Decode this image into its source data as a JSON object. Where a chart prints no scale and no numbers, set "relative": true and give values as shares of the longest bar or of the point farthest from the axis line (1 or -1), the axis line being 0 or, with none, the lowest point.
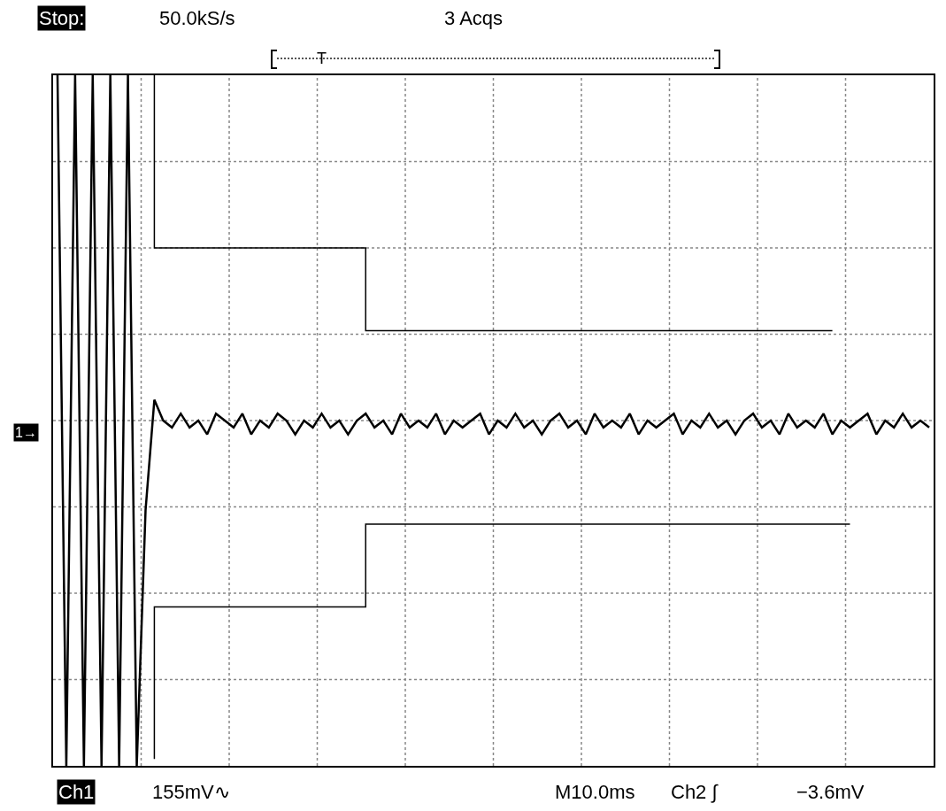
{
  "chart_data": {
    "type": "line",
    "relative": true,
    "grid": true,
    "annotations": [
      "Stop:",
      "50.0kS/s",
      "3 Acqs",
      "T",
      "1→",
      "Ch1",
      "155mV∿",
      "M10.0ms",
      "Ch2 ∫",
      "−3.6mV"
    ],
    "categories": [
      null,
      null,
      null,
      null,
      null,
      null,
      null,
      null,
      null,
      null,
      null,
      null,
      null,
      null,
      null,
      null,
      null,
      null,
      null,
      null,
      null,
      null,
      null,
      null,
      null,
      null,
      null,
      null,
      null,
      null,
      null,
      null,
      null,
      null,
      null,
      null,
      null,
      null,
      null,
      null,
      null,
      null,
      null,
      null,
      null,
      null,
      null,
      null,
      null,
      null,
      null,
      null,
      null,
      null,
      null,
      null,
      null,
      null,
      null,
      null,
      null,
      null,
      null,
      null,
      null,
      null,
      null,
      null,
      null,
      null,
      null,
      null,
      null,
      null,
      null,
      null,
      null,
      null,
      null,
      null,
      null,
      null,
      null,
      null,
      null,
      null,
      null,
      null,
      null,
      null,
      null,
      null,
      null,
      null,
      null,
      null,
      null,
      null,
      null,
      null
    ],
    "series": [
      {
        "color": "#000000",
        "values": [
          1,
          0,
          1,
          0,
          1,
          0,
          1,
          0,
          1,
          0,
          0.37,
          0.53,
          0.5,
          0.49,
          0.51,
          0.49,
          0.5,
          0.48,
          0.51,
          0.5,
          0.49,
          0.51,
          0.48,
          0.5,
          0.49,
          0.51,
          0.5,
          0.48,
          0.5,
          0.49,
          0.51,
          0.49,
          0.5,
          0.48,
          0.5,
          0.51,
          0.49,
          0.5,
          0.48,
          0.51,
          0.49,
          0.5,
          0.49,
          0.51,
          0.48,
          0.5,
          0.49,
          0.5,
          0.51,
          0.48,
          0.5,
          0.49,
          0.51,
          0.49,
          0.5,
          0.48,
          0.5,
          0.51,
          0.49,
          0.5,
          0.48,
          0.51,
          0.49,
          0.5,
          0.49,
          0.51,
          0.48,
          0.5,
          0.49,
          0.5,
          0.51,
          0.48,
          0.5,
          0.49,
          0.51,
          0.49,
          0.5,
          0.48,
          0.5,
          0.51,
          0.49,
          0.5,
          0.48,
          0.51,
          0.49,
          0.5,
          0.49,
          0.51,
          0.48,
          0.5,
          0.49,
          0.5,
          0.51,
          0.48,
          0.5,
          0.49,
          0.51,
          0.49,
          0.5,
          0.49
        ]
      },
      {
        "type": "step",
        "color": "#000000",
        "values": [
          null,
          null,
          null,
          null,
          null,
          null,
          null,
          null,
          null,
          null,
          null,
          1,
          0.75,
          0.75,
          0.75,
          0.75,
          0.75,
          0.75,
          0.75,
          0.75,
          0.75,
          0.75,
          0.75,
          0.75,
          0.75,
          0.75,
          0.75,
          0.75,
          0.75,
          0.75,
          0.75,
          0.75,
          0.75,
          0.75,
          0.75,
          0.75,
          0.63,
          0.63,
          0.63,
          0.63,
          0.63,
          0.63,
          0.63,
          0.63,
          0.63,
          0.63,
          0.63,
          0.63,
          0.63,
          0.63,
          0.63,
          0.63,
          0.63,
          0.63,
          0.63,
          0.63,
          0.63,
          0.63,
          0.63,
          0.63,
          0.63,
          0.63,
          0.63,
          0.63,
          0.63,
          0.63,
          0.63,
          0.63,
          0.63,
          0.63,
          0.63,
          0.63,
          0.63,
          0.63,
          0.63,
          0.63,
          0.63,
          0.63,
          0.63,
          0.63,
          0.63,
          0.63,
          0.63,
          0.63,
          0.63,
          0.63,
          0.63,
          0.63,
          0.63,
          null,
          null,
          null,
          null,
          null,
          null,
          null,
          null,
          null,
          null,
          null
        ]
      },
      {
        "type": "step",
        "color": "#000000",
        "values": [
          null,
          null,
          null,
          null,
          null,
          null,
          null,
          null,
          null,
          null,
          null,
          0.01,
          0.23,
          0.23,
          0.23,
          0.23,
          0.23,
          0.23,
          0.23,
          0.23,
          0.23,
          0.23,
          0.23,
          0.23,
          0.23,
          0.23,
          0.23,
          0.23,
          0.23,
          0.23,
          0.23,
          0.23,
          0.23,
          0.23,
          0.23,
          0.23,
          0.35,
          0.35,
          0.35,
          0.35,
          0.35,
          0.35,
          0.35,
          0.35,
          0.35,
          0.35,
          0.35,
          0.35,
          0.35,
          0.35,
          0.35,
          0.35,
          0.35,
          0.35,
          0.35,
          0.35,
          0.35,
          0.35,
          0.35,
          0.35,
          0.35,
          0.35,
          0.35,
          0.35,
          0.35,
          0.35,
          0.35,
          0.35,
          0.35,
          0.35,
          0.35,
          0.35,
          0.35,
          0.35,
          0.35,
          0.35,
          0.35,
          0.35,
          0.35,
          0.35,
          0.35,
          0.35,
          0.35,
          0.35,
          0.35,
          0.35,
          0.35,
          0.35,
          0.35,
          0.35,
          0.35,
          null,
          null,
          null,
          null,
          null,
          null,
          null,
          null,
          null
        ]
      }
    ]
  }
}
